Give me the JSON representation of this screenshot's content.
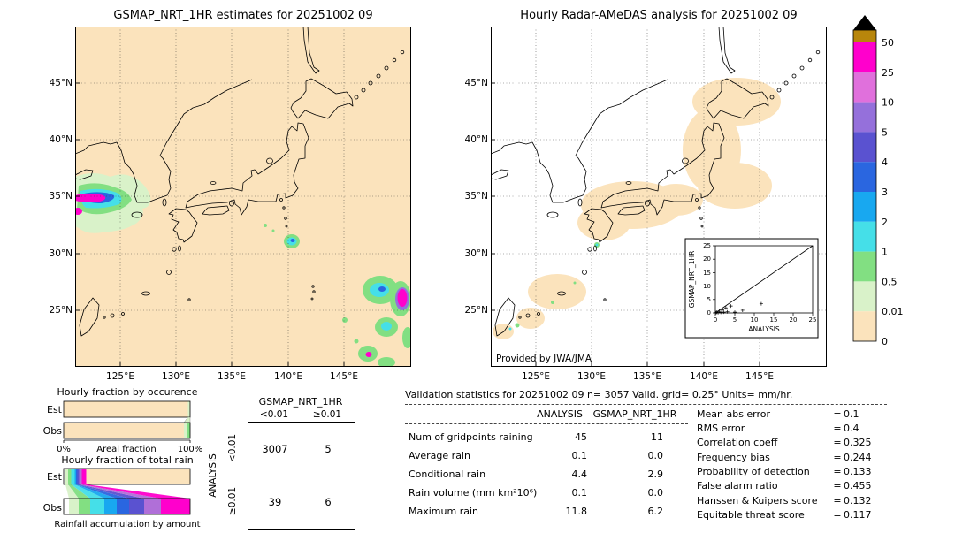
{
  "left_map": {
    "title": "GSMAP_NRT_1HR estimates for 20251002 09"
  },
  "right_map": {
    "title": "Hourly Radar-AMeDAS analysis for 20251002 09",
    "credit": "Provided by JWA/JMA"
  },
  "axes": {
    "lat_ticks": [
      "45°N",
      "40°N",
      "35°N",
      "30°N",
      "25°N"
    ],
    "lon_ticks": [
      "125°E",
      "130°E",
      "135°E",
      "140°E",
      "145°E"
    ]
  },
  "colorbar": {
    "labels": [
      "50",
      "25",
      "10",
      "5",
      "4",
      "3",
      "2",
      "1",
      "0.5",
      "0.01",
      "0"
    ],
    "colors_top_to_bottom": [
      "#b8860b",
      "#ff00cc",
      "#e070dc",
      "#9570db",
      "#5a52d0",
      "#2a66e0",
      "#18a8f0",
      "#45dfe8",
      "#82df82",
      "#d9f2c9",
      "#fbe3bc"
    ]
  },
  "fractions": {
    "occurrence_title": "Hourly fraction by occurence",
    "total_rain_title": "Hourly fraction of total rain",
    "row_labels": {
      "est": "Est",
      "obs": "Obs"
    },
    "areal_axis": {
      "min": "0%",
      "label": "Areal fraction",
      "max": "100%"
    },
    "accum_label": "Rainfall accumulation by amount"
  },
  "contingency": {
    "header": "GSMAP_NRT_1HR",
    "col_labels": [
      "<0.01",
      "≥0.01"
    ],
    "row_axis": "ANALYSIS",
    "row_labels": [
      "<0.01",
      "≥0.01"
    ],
    "values": [
      [
        "3007",
        "5"
      ],
      [
        "39",
        "6"
      ]
    ]
  },
  "stats": {
    "title": "Validation statistics for 20251002 09  n= 3057 Valid. grid= 0.25° Units= mm/hr.",
    "col_headers": [
      "ANALYSIS",
      "GSMAP_NRT_1HR"
    ],
    "eq": "=",
    "rows": [
      {
        "label": "Num of gridpoints raining",
        "analysis": "45",
        "gsmap": "11"
      },
      {
        "label": "Average rain",
        "analysis": "0.1",
        "gsmap": "0.0"
      },
      {
        "label": "Conditional rain",
        "analysis": "4.4",
        "gsmap": "2.9"
      },
      {
        "label": "Rain volume (mm km²10⁶)",
        "analysis": "0.1",
        "gsmap": "0.0"
      },
      {
        "label": "Maximum rain",
        "analysis": "11.8",
        "gsmap": "6.2"
      }
    ],
    "scores": [
      {
        "label": "Mean abs error",
        "value": "0.1"
      },
      {
        "label": "RMS error",
        "value": "0.4"
      },
      {
        "label": "Correlation coeff",
        "value": "0.325"
      },
      {
        "label": "Frequency bias",
        "value": "0.244"
      },
      {
        "label": "Probability of detection",
        "value": "0.133"
      },
      {
        "label": "False alarm ratio",
        "value": "0.455"
      },
      {
        "label": "Hanssen & Kuipers score",
        "value": "0.132"
      },
      {
        "label": "Equitable threat score",
        "value": "0.117"
      }
    ]
  },
  "inset": {
    "xlabel": "ANALYSIS",
    "ylabel": "GSMAP_NRT_1HR",
    "ticks": [
      "0",
      "5",
      "10",
      "15",
      "20",
      "25"
    ]
  },
  "chart_data": [
    {
      "type": "heatmap",
      "panel": "left",
      "title": "GSMAP_NRT_1HR estimates for 20251002 09",
      "units": "mm/hr",
      "lon_ticks": [
        "125°E",
        "130°E",
        "135°E",
        "140°E",
        "145°E"
      ],
      "lat_ticks": [
        "45°N",
        "40°N",
        "35°N",
        "30°N",
        "25°N"
      ],
      "color_levels": [
        0,
        0.01,
        0.5,
        1,
        2,
        3,
        4,
        5,
        10,
        25,
        50
      ],
      "colors_low_to_high": [
        "#fbe3bc",
        "#d9f2c9",
        "#82df82",
        "#45dfe8",
        "#18a8f0",
        "#2a66e0",
        "#5a52d0",
        "#9570db",
        "#e070dc",
        "#ff00cc",
        "#b8860b"
      ],
      "features": [
        "rain system with 10-50 mm/hr magenta cores over the Yellow Sea near 33-36N / 122-127E",
        "isolated cell near 31N / 140E",
        "convective cluster with heavy cores near 20-27N / 146-151E"
      ]
    },
    {
      "type": "heatmap",
      "panel": "right",
      "title": "Hourly Radar-AMeDAS analysis for 20251002 09",
      "units": "mm/hr",
      "features": [
        "radar-covered area (0-0.01 mm/hr) shaded along the Japanese archipelago",
        "light rain specks south of Kyushu and near the Ryukyu islands"
      ]
    },
    {
      "type": "scatter",
      "panel": "right-inset",
      "xlabel": "ANALYSIS",
      "ylabel": "GSMAP_NRT_1HR",
      "xlim": [
        0,
        25
      ],
      "ylim": [
        0,
        25
      ],
      "xticks": [
        0,
        5,
        10,
        15,
        20,
        25
      ],
      "yticks": [
        0,
        5,
        10,
        15,
        20,
        25
      ],
      "diagonal_line": true,
      "points": [
        [
          0.2,
          0.1
        ],
        [
          0.4,
          0.3
        ],
        [
          0.7,
          0.1
        ],
        [
          1,
          0.6
        ],
        [
          1.4,
          0.2
        ],
        [
          1.8,
          1.2
        ],
        [
          2.2,
          0.3
        ],
        [
          2.7,
          1.9
        ],
        [
          3.1,
          0.4
        ],
        [
          4,
          2.6
        ],
        [
          5,
          0.3
        ],
        [
          7,
          1
        ],
        [
          11.8,
          3.4
        ]
      ]
    },
    {
      "type": "bar",
      "panel": "occurrence",
      "title": "Hourly fraction by occurence",
      "orientation": "horizontal",
      "categories": [
        "Est",
        "Obs"
      ],
      "xlabel": "Areal fraction",
      "xlim_pct": [
        0,
        100
      ],
      "raining_fraction_pct": {
        "Est": 1.5,
        "Obs": 4.5
      }
    },
    {
      "type": "bar",
      "panel": "total-rain",
      "title": "Hourly fraction of total rain",
      "orientation": "horizontal",
      "categories": [
        "Est",
        "Obs"
      ],
      "footer": "Rainfall accumulation by amount",
      "segments_pct": {
        "Est": [
          1.5,
          2,
          2.5,
          3,
          1,
          1,
          1.5,
          2,
          3.5
        ],
        "Obs": [
          4,
          8,
          9,
          11,
          10,
          10,
          12,
          13,
          23
        ]
      }
    },
    {
      "type": "table",
      "panel": "contingency",
      "col_header": "GSMAP_NRT_1HR",
      "row_header": "ANALYSIS",
      "cols": [
        "<0.01",
        "≥0.01"
      ],
      "rows": [
        "<0.01",
        "≥0.01"
      ],
      "values": [
        [
          3007,
          5
        ],
        [
          39,
          6
        ]
      ]
    },
    {
      "type": "table",
      "panel": "validation-stats",
      "title": "Validation statistics for 20251002 09",
      "n": 3057,
      "grid": "0.25°",
      "units": "mm/hr",
      "columns": [
        "ANALYSIS",
        "GSMAP_NRT_1HR"
      ],
      "rows": [
        [
          "Num of gridpoints raining",
          45,
          11
        ],
        [
          "Average rain",
          0.1,
          0.0
        ],
        [
          "Conditional rain",
          4.4,
          2.9
        ],
        [
          "Rain volume (mm km²10⁶)",
          0.1,
          0.0
        ],
        [
          "Maximum rain",
          11.8,
          6.2
        ]
      ],
      "scores": {
        "Mean abs error": 0.1,
        "RMS error": 0.4,
        "Correlation coeff": 0.325,
        "Frequency bias": 0.244,
        "Probability of detection": 0.133,
        "False alarm ratio": 0.455,
        "Hanssen & Kuipers score": 0.132,
        "Equitable threat score": 0.117
      }
    }
  ]
}
